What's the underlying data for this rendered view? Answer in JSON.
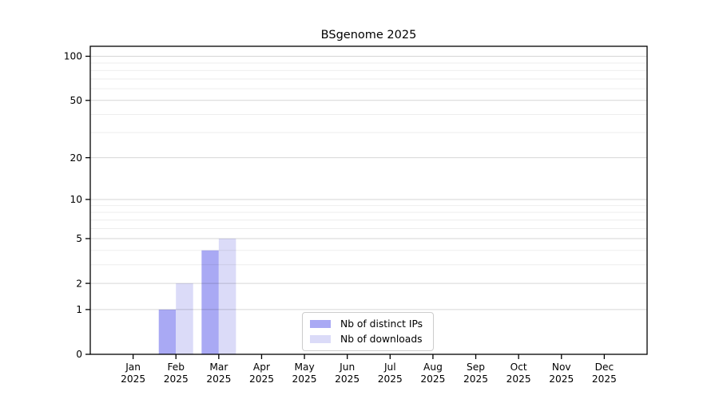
{
  "chart_data": {
    "type": "bar",
    "title": "BSgenome 2025",
    "categories": [
      "Jan",
      "Feb",
      "Mar",
      "Apr",
      "May",
      "Jun",
      "Jul",
      "Aug",
      "Sep",
      "Oct",
      "Nov",
      "Dec"
    ],
    "category_year": "2025",
    "series": [
      {
        "name": "Nb of distinct IPs",
        "color": "#a9a9f4",
        "values": [
          0,
          1,
          4,
          0,
          0,
          0,
          0,
          0,
          0,
          0,
          0,
          0
        ]
      },
      {
        "name": "Nb of downloads",
        "color": "#dbdbf8",
        "values": [
          0,
          2,
          5,
          0,
          0,
          0,
          0,
          0,
          0,
          0,
          0,
          0
        ]
      }
    ],
    "xlabel": "",
    "ylabel": "",
    "yscale": "log10(1+x)",
    "yticks": [
      0,
      1,
      2,
      5,
      10,
      20,
      50,
      100
    ],
    "minor_gridlines": [
      3,
      4,
      6,
      7,
      8,
      9,
      30,
      40,
      60,
      70,
      80,
      90
    ],
    "ylim": [
      0,
      117
    ],
    "grid": true,
    "grid_above_bars": true,
    "legend_position": "lower center"
  },
  "colors": {
    "background": "#ffffff",
    "axis": "#000000",
    "major_grid": "rgba(0,0,0,0.16)",
    "minor_grid": "rgba(0,0,0,0.07)",
    "legend_border": "#cccccc",
    "text": "#000000"
  }
}
